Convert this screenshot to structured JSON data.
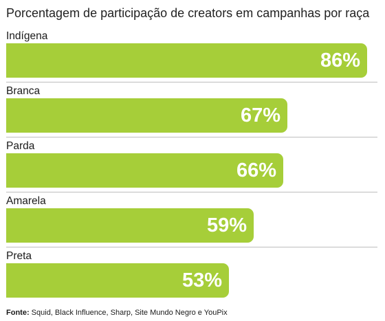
{
  "chart_data": {
    "type": "bar",
    "orientation": "horizontal",
    "title": "Porcentagem de participação de creators em campanhas por raça",
    "categories": [
      "Indígena",
      "Branca",
      "Parda",
      "Amarela",
      "Preta"
    ],
    "values": [
      86,
      67,
      66,
      59,
      53
    ],
    "value_labels": [
      "86%",
      "67%",
      "66%",
      "59%",
      "53%"
    ],
    "unit": "%",
    "xlim": [
      0,
      100
    ],
    "grid": false,
    "legend": "none"
  },
  "colors": {
    "bar": "#a6ce39",
    "value_text": "#ffffff",
    "text": "#1a1a1a"
  },
  "source": {
    "label": "Fonte:",
    "text": "Squid, Black Influence, Sharp, Site Mundo Negro e YouPix"
  }
}
